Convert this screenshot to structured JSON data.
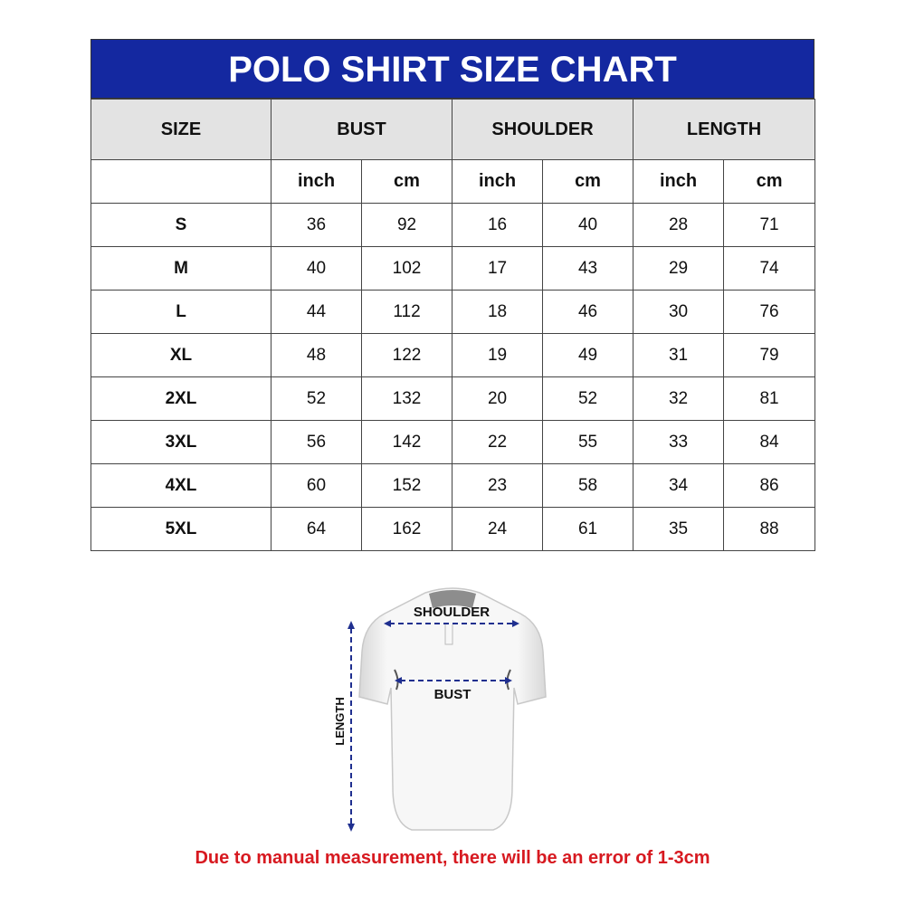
{
  "title": "POLO SHIRT SIZE CHART",
  "headers": {
    "size": "SIZE",
    "bust": "BUST",
    "shoulder": "SHOULDER",
    "length": "LENGTH"
  },
  "units": [
    "inch",
    "cm",
    "inch",
    "cm",
    "inch",
    "cm"
  ],
  "rows": [
    {
      "size": "S",
      "values": [
        "36",
        "92",
        "16",
        "40",
        "28",
        "71"
      ]
    },
    {
      "size": "M",
      "values": [
        "40",
        "102",
        "17",
        "43",
        "29",
        "74"
      ]
    },
    {
      "size": "L",
      "values": [
        "44",
        "112",
        "18",
        "46",
        "30",
        "76"
      ]
    },
    {
      "size": "XL",
      "values": [
        "48",
        "122",
        "19",
        "49",
        "31",
        "79"
      ]
    },
    {
      "size": "2XL",
      "values": [
        "52",
        "132",
        "20",
        "52",
        "32",
        "81"
      ]
    },
    {
      "size": "3XL",
      "values": [
        "56",
        "142",
        "22",
        "55",
        "33",
        "84"
      ]
    },
    {
      "size": "4XL",
      "values": [
        "60",
        "152",
        "23",
        "58",
        "34",
        "86"
      ]
    },
    {
      "size": "5XL",
      "values": [
        "64",
        "162",
        "24",
        "61",
        "35",
        "88"
      ]
    }
  ],
  "diagram": {
    "shoulder_label": "SHOULDER",
    "bust_label": "BUST",
    "length_label": "LENGTH"
  },
  "footer": "Due to manual measurement, there will be an error of 1-3cm",
  "colors": {
    "title_bg": "#1428a0",
    "header_bg": "#e3e3e3",
    "arrow": "#1f2f8f",
    "footer_text": "#d71920"
  }
}
